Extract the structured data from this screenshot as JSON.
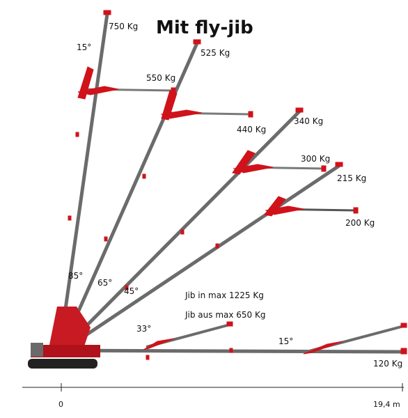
{
  "title": "Mit fly-jib",
  "colors": {
    "boom": "#666666",
    "jib": "#d0121b",
    "tip": "#d0121b",
    "ground": "#333333",
    "track": "#222222"
  },
  "axis": {
    "start": "0",
    "end": "19,4 m"
  },
  "notes": {
    "jib_in": "Jib in max 1225 Kg",
    "jib_out": "Jib aus max 650 Kg"
  },
  "angles": {
    "a85": "85°",
    "a65": "65°",
    "a45": "45°",
    "a33": "33°",
    "a15": "15°",
    "top15": "15°"
  },
  "loads": {
    "l750": "750 Kg",
    "l525": "525 Kg",
    "l550": "550 Kg",
    "l340": "340 Kg",
    "l440": "440 Kg",
    "l300": "300 Kg",
    "l215": "215 Kg",
    "l200": "200 Kg",
    "l120": "120 Kg"
  }
}
